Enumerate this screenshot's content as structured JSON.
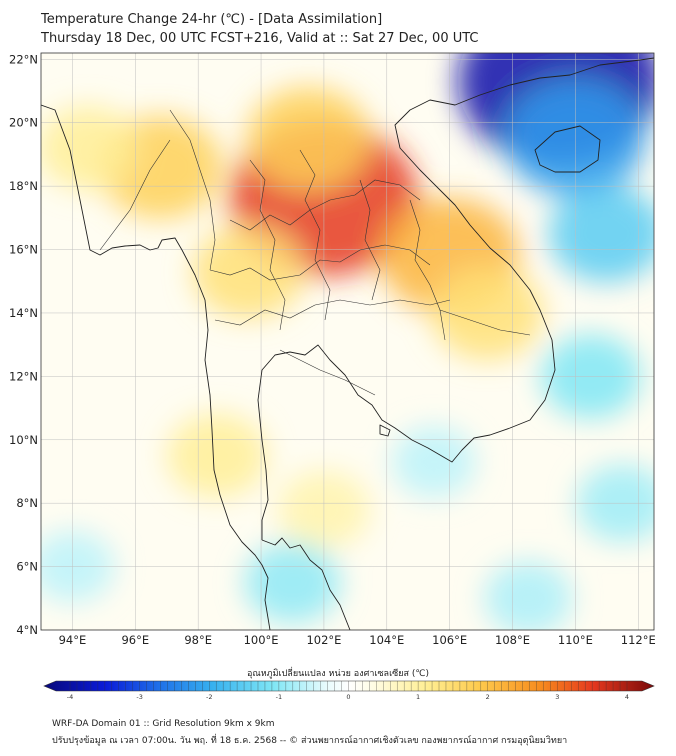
{
  "header": {
    "title_line1": "Temperature Change 24-hr (℃) - [Data Assimilation]",
    "title_line2": "Thursday 18 Dec, 00 UTC FCST+216, Valid at :: Sat 27 Dec, 00 UTC"
  },
  "map": {
    "lon_labels": [
      "94°E",
      "96°E",
      "98°E",
      "100°E",
      "102°E",
      "104°E",
      "106°E",
      "108°E",
      "110°E",
      "112°E"
    ],
    "lat_labels": [
      "22°N",
      "20°N",
      "18°N",
      "16°N",
      "14°N",
      "12°N",
      "10°N",
      "8°N",
      "6°N",
      "4°N"
    ],
    "lon_values": [
      94,
      96,
      98,
      100,
      102,
      104,
      106,
      108,
      110,
      112
    ],
    "lat_values": [
      22,
      20,
      18,
      16,
      14,
      12,
      10,
      8,
      6,
      4
    ],
    "lon_range": [
      93,
      112.5
    ],
    "lat_range": [
      4,
      22.2
    ],
    "anomalies": [
      {
        "name": "warm-core-laos",
        "lon": 102.0,
        "lat": 17.6,
        "value": 3.2
      },
      {
        "name": "warm-lao-north",
        "lon": 101.5,
        "lat": 19.5,
        "value": 1.6
      },
      {
        "name": "warm-east-laos",
        "lon": 106.0,
        "lat": 15.8,
        "value": 2.0
      },
      {
        "name": "warm-cambodia",
        "lon": 107.2,
        "lat": 14.0,
        "value": 1.3
      },
      {
        "name": "warm-myanmar",
        "lon": 96.8,
        "lat": 18.6,
        "value": 1.6
      },
      {
        "name": "warm-west",
        "lon": 94.5,
        "lat": 19.2,
        "value": 1.0
      },
      {
        "name": "warm-thai-central",
        "lon": 99.6,
        "lat": 15.3,
        "value": 1.3
      },
      {
        "name": "warm-peninsula",
        "lon": 98.6,
        "lat": 9.5,
        "value": 1.0
      },
      {
        "name": "warm-gulf",
        "lon": 102.0,
        "lat": 7.8,
        "value": 0.8
      },
      {
        "name": "cold-south-china",
        "lon": 109.5,
        "lat": 21.3,
        "value": -3.6
      },
      {
        "name": "cold-hainan",
        "lon": 110.0,
        "lat": 19.5,
        "value": -2.0
      },
      {
        "name": "cold-sea",
        "lon": 111.0,
        "lat": 16.5,
        "value": -1.4
      },
      {
        "name": "cold-sea-south",
        "lon": 110.5,
        "lat": 12.0,
        "value": -1.0
      },
      {
        "name": "cold-east-sea",
        "lon": 111.5,
        "lat": 8.0,
        "value": -0.8
      },
      {
        "name": "cold-malaya",
        "lon": 101.0,
        "lat": 5.5,
        "value": -0.9
      },
      {
        "name": "cold-andaman",
        "lon": 94.0,
        "lat": 6.0,
        "value": -0.6
      },
      {
        "name": "cold-mekong-delta",
        "lon": 105.5,
        "lat": 9.3,
        "value": -0.6
      },
      {
        "name": "cold-borneo",
        "lon": 108.5,
        "lat": 5.0,
        "value": -0.7
      }
    ]
  },
  "colorbar": {
    "label": "อุณหภูมิเปลี่ยนแปลง หน่วย องศาเซลเซียส (℃)",
    "ticks": [
      "-4",
      "-3",
      "-2",
      "-1",
      "0",
      "1",
      "2",
      "3",
      "4"
    ],
    "tick_values": [
      -4,
      -3,
      -2,
      -1,
      0,
      1,
      2,
      3,
      4
    ],
    "range": [
      -4,
      4
    ],
    "stops": [
      {
        "v": -4.0,
        "c": "#08087a"
      },
      {
        "v": -3.2,
        "c": "#0a1bd8"
      },
      {
        "v": -2.5,
        "c": "#1f6fe8"
      },
      {
        "v": -1.8,
        "c": "#36b0ef"
      },
      {
        "v": -1.0,
        "c": "#7fe6f5"
      },
      {
        "v": -0.3,
        "c": "#e8fbfd"
      },
      {
        "v": 0.0,
        "c": "#ffffff"
      },
      {
        "v": 0.3,
        "c": "#fffde6"
      },
      {
        "v": 1.0,
        "c": "#ffef96"
      },
      {
        "v": 1.7,
        "c": "#fecb4e"
      },
      {
        "v": 2.5,
        "c": "#f78d1e"
      },
      {
        "v": 3.2,
        "c": "#e5381e"
      },
      {
        "v": 4.0,
        "c": "#7a0a0a"
      }
    ]
  },
  "footer": {
    "line1": "WRF-DA Domain 01 :: Grid Resolution 9km x 9km",
    "line2": "ปรับปรุงข้อมูล ณ เวลา 07:00น. วัน พฤ. ที่ 18 ธ.ค. 2568 -- © ส่วนพยากรณ์อากาศเชิงตัวเลข กองพยากรณ์อากาศ กรมอุตุนิยมวิทยา"
  }
}
